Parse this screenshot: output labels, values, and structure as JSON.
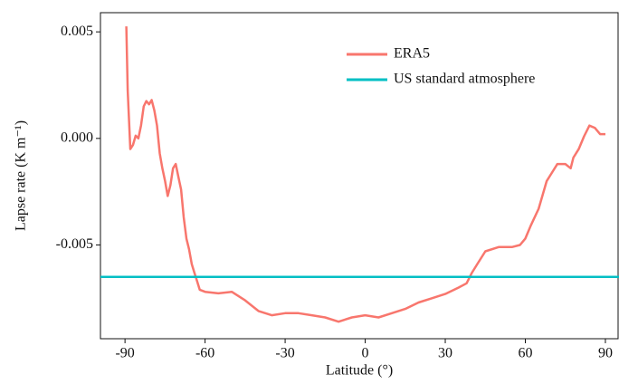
{
  "chart_data": {
    "type": "line",
    "x_label": "Latitude (°)",
    "y_label": "Lapse rate (K m⁻¹)",
    "xlim": [
      -99.2,
      95.1
    ],
    "xticks": [
      -90,
      -60,
      -30,
      0,
      30,
      60,
      90
    ],
    "ylim": [
      -0.0094,
      0.0059
    ],
    "yticks": [
      -0.005,
      {
        "value": 0,
        "label": "0.000"
      },
      0.005
    ],
    "legend": "top-right",
    "series": [
      {
        "name": "ERA5",
        "color": "#f8766d",
        "x": [
          -89.5,
          -89,
          -88,
          -87,
          -86,
          -85,
          -84,
          -83,
          -82,
          -81,
          -80,
          -79,
          -78,
          -77,
          -76,
          -75,
          -74,
          -73,
          -72,
          -71,
          -70,
          -69,
          -68,
          -67,
          -66,
          -65,
          -64,
          -63,
          -62,
          -60,
          -55,
          -50,
          -45,
          -40,
          -35,
          -30,
          -25,
          -20,
          -15,
          -10,
          -5,
          0,
          5,
          10,
          15,
          20,
          25,
          30,
          35,
          38,
          40,
          42,
          45,
          50,
          55,
          58,
          60,
          62,
          65,
          68,
          70,
          72,
          75,
          77,
          78,
          80,
          82,
          84,
          86,
          88,
          90
        ],
        "values": [
          0.00526,
          0.00226,
          -0.0005,
          -0.0003,
          0.00013,
          0,
          0.0006,
          0.0015,
          0.00175,
          0.0016,
          0.0018,
          0.0013,
          0.0006,
          -0.0007,
          -0.0014,
          -0.002,
          -0.0027,
          -0.0022,
          -0.0014,
          -0.0012,
          -0.0018,
          -0.0024,
          -0.0037,
          -0.0047,
          -0.0052,
          -0.0059,
          -0.0063,
          -0.0067,
          -0.0071,
          -0.0072,
          -0.00727,
          -0.0072,
          -0.0076,
          -0.0081,
          -0.0083,
          -0.0082,
          -0.0082,
          -0.0083,
          -0.0084,
          -0.0086,
          -0.0084,
          -0.0083,
          -0.0084,
          -0.0082,
          -0.008,
          -0.0077,
          -0.0075,
          -0.0073,
          -0.007,
          -0.0068,
          -0.0063,
          -0.0059,
          -0.0053,
          -0.0051,
          -0.0051,
          -0.005,
          -0.0047,
          -0.0041,
          -0.0033,
          -0.002,
          -0.0016,
          -0.0012,
          -0.0012,
          -0.0014,
          -0.0009,
          -0.0005,
          0.0001,
          0.0006,
          0.0005,
          0.0002,
          0.0002
        ]
      },
      {
        "name": "US standard atmosphere",
        "color": "#00bfc4",
        "x": [
          -99.2,
          95.1
        ],
        "values": [
          -0.0065,
          -0.0065
        ]
      }
    ]
  }
}
